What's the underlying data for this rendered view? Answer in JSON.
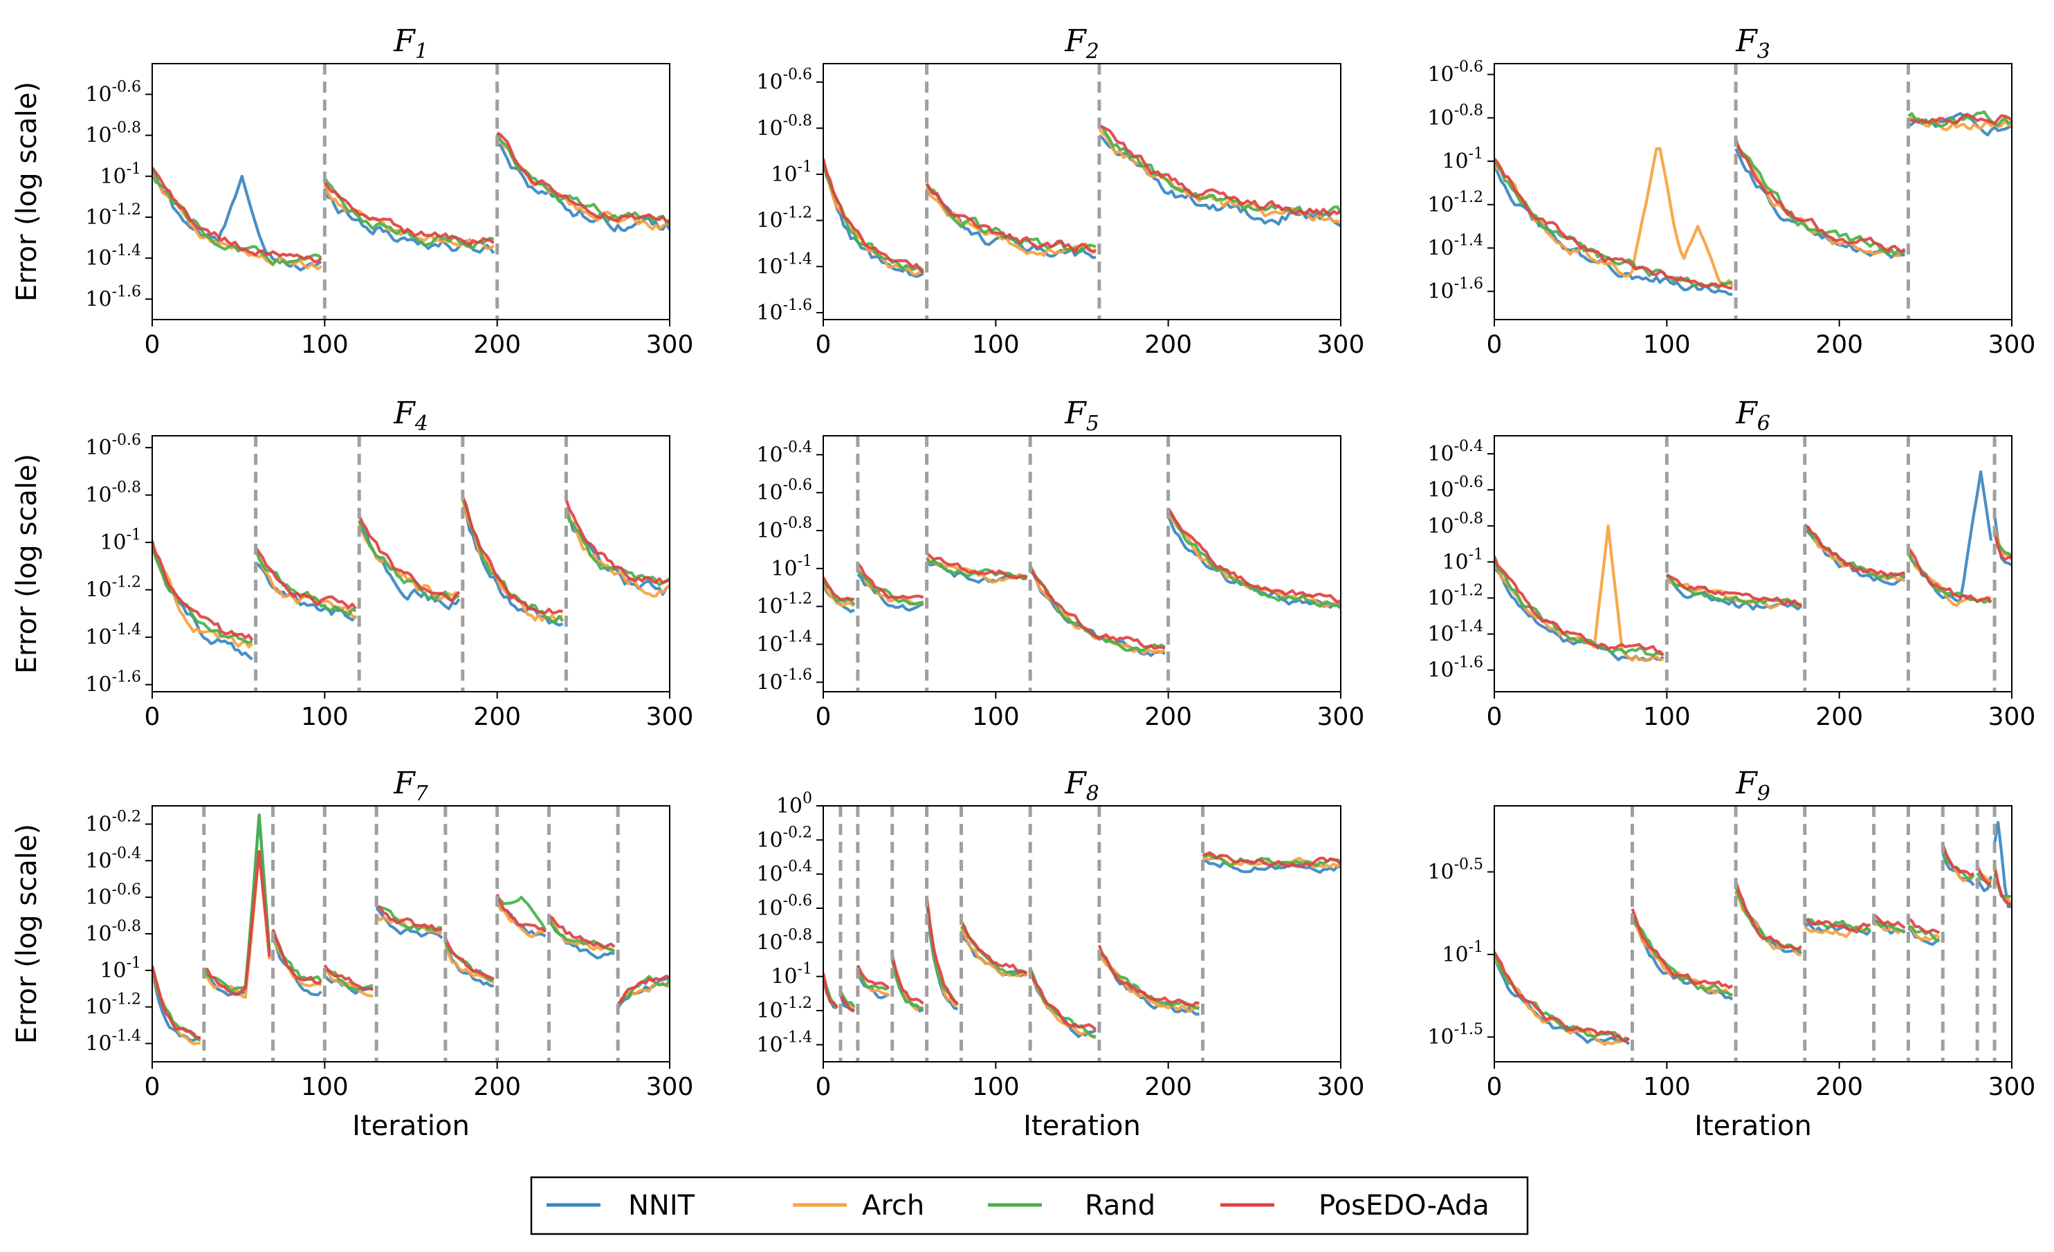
{
  "figure": {
    "ylabel": "Error (log scale)",
    "xlabel": "Iteration",
    "xticks": [
      "0",
      "100",
      "200",
      "300"
    ]
  },
  "legend": {
    "placement": "bottom-center",
    "entries": [
      {
        "label": "NNIT",
        "color": "#3a86c0"
      },
      {
        "label": "Arch",
        "color": "#f7a13d"
      },
      {
        "label": "Rand",
        "color": "#4ab04a"
      },
      {
        "label": "PosEDO-Ada",
        "color": "#dd4244"
      }
    ]
  },
  "chart_data": [
    {
      "type": "line",
      "title": "F1",
      "title_base": "F",
      "title_sub": "1",
      "xlim": [
        0,
        300
      ],
      "ylim": [
        -1.7,
        -0.45
      ],
      "yticks": [
        -0.6,
        -0.8,
        -1.0,
        -1.2,
        -1.4,
        -1.6
      ],
      "yticklabels": [
        "10^-0.6",
        "10^-0.8",
        "10^-1",
        "10^-1.2",
        "10^-1.4",
        "10^-1.6"
      ],
      "changes": [
        100,
        200
      ],
      "segments": [
        [
          0,
          -0.98,
          -1.45
        ],
        [
          100,
          -1.05,
          -1.35
        ],
        [
          200,
          -0.8,
          -1.25
        ]
      ],
      "series": [
        {
          "name": "NNIT",
          "jitter": 0.05,
          "spikes": [
            [
              52,
              -1.0,
              14
            ]
          ]
        },
        {
          "name": "Arch",
          "jitter": 0.04
        },
        {
          "name": "Rand",
          "jitter": 0.04
        },
        {
          "name": "PosEDO-Ada",
          "jitter": 0.035
        }
      ]
    },
    {
      "type": "line",
      "title": "F2",
      "title_base": "F",
      "title_sub": "2",
      "xlim": [
        0,
        300
      ],
      "ylim": [
        -1.63,
        -0.52
      ],
      "yticks": [
        -0.6,
        -0.8,
        -1.0,
        -1.2,
        -1.4,
        -1.6
      ],
      "yticklabels": [
        "10^-0.6",
        "10^-0.8",
        "10^-1",
        "10^-1.2",
        "10^-1.4",
        "10^-1.6"
      ],
      "changes": [
        60,
        160
      ],
      "segments": [
        [
          0,
          -0.95,
          -1.45
        ],
        [
          60,
          -1.05,
          -1.35
        ],
        [
          160,
          -0.8,
          -1.2
        ]
      ],
      "series": [
        {
          "name": "NNIT",
          "jitter": 0.045
        },
        {
          "name": "Arch",
          "jitter": 0.04
        },
        {
          "name": "Rand",
          "jitter": 0.04
        },
        {
          "name": "PosEDO-Ada",
          "jitter": 0.035
        }
      ]
    },
    {
      "type": "line",
      "title": "F3",
      "title_base": "F",
      "title_sub": "3",
      "xlim": [
        0,
        300
      ],
      "ylim": [
        -1.73,
        -0.55
      ],
      "yticks": [
        -0.6,
        -0.8,
        -1.0,
        -1.2,
        -1.4,
        -1.6
      ],
      "yticklabels": [
        "10^-0.6",
        "10^-0.8",
        "10^-1",
        "10^-1.2",
        "10^-1.4",
        "10^-1.6"
      ],
      "changes": [
        140,
        240
      ],
      "segments": [
        [
          0,
          -1.0,
          -1.6
        ],
        [
          140,
          -0.9,
          -1.45
        ],
        [
          240,
          -0.82,
          -0.82
        ]
      ],
      "series": [
        {
          "name": "NNIT",
          "jitter": 0.04,
          "spikes": [
            [
              270,
              -0.78,
              15
            ]
          ]
        },
        {
          "name": "Arch",
          "jitter": 0.04,
          "spikes": [
            [
              95,
              -0.9,
              15
            ],
            [
              118,
              -1.3,
              14
            ]
          ]
        },
        {
          "name": "Rand",
          "jitter": 0.04
        },
        {
          "name": "PosEDO-Ada",
          "jitter": 0.035
        }
      ]
    },
    {
      "type": "line",
      "title": "F4",
      "title_base": "F",
      "title_sub": "4",
      "xlim": [
        0,
        300
      ],
      "ylim": [
        -1.63,
        -0.55
      ],
      "yticks": [
        -0.6,
        -0.8,
        -1.0,
        -1.2,
        -1.4,
        -1.6
      ],
      "yticklabels": [
        "10^-0.6",
        "10^-0.8",
        "10^-1",
        "10^-1.2",
        "10^-1.4",
        "10^-1.6"
      ],
      "changes": [
        60,
        120,
        180,
        240
      ],
      "segments": [
        [
          0,
          -1.0,
          -1.45
        ],
        [
          60,
          -1.05,
          -1.3
        ],
        [
          120,
          -0.9,
          -1.25
        ],
        [
          180,
          -0.82,
          -1.35
        ],
        [
          240,
          -0.85,
          -1.2
        ]
      ],
      "series": [
        {
          "name": "NNIT",
          "jitter": 0.045
        },
        {
          "name": "Arch",
          "jitter": 0.04
        },
        {
          "name": "Rand",
          "jitter": 0.04
        },
        {
          "name": "PosEDO-Ada",
          "jitter": 0.035
        }
      ]
    },
    {
      "type": "line",
      "title": "F5",
      "title_base": "F",
      "title_sub": "5",
      "xlim": [
        0,
        300
      ],
      "ylim": [
        -1.65,
        -0.3
      ],
      "yticks": [
        -0.4,
        -0.6,
        -0.8,
        -1.0,
        -1.2,
        -1.4,
        -1.6
      ],
      "yticklabels": [
        "10^-0.4",
        "10^-0.6",
        "10^-0.8",
        "10^-1",
        "10^-1.2",
        "10^-1.4",
        "10^-1.6"
      ],
      "changes": [
        20,
        60,
        120,
        200
      ],
      "segments": [
        [
          0,
          -1.05,
          -1.2
        ],
        [
          20,
          -1.0,
          -1.2
        ],
        [
          60,
          -0.95,
          -1.05
        ],
        [
          120,
          -1.0,
          -1.45
        ],
        [
          200,
          -0.7,
          -1.2
        ]
      ],
      "series": [
        {
          "name": "NNIT",
          "jitter": 0.035
        },
        {
          "name": "Arch",
          "jitter": 0.035
        },
        {
          "name": "Rand",
          "jitter": 0.035
        },
        {
          "name": "PosEDO-Ada",
          "jitter": 0.03
        }
      ]
    },
    {
      "type": "line",
      "title": "F6",
      "title_base": "F",
      "title_sub": "6",
      "xlim": [
        0,
        300
      ],
      "ylim": [
        -1.72,
        -0.3
      ],
      "yticks": [
        -0.4,
        -0.6,
        -0.8,
        -1.0,
        -1.2,
        -1.4,
        -1.6
      ],
      "yticklabels": [
        "10^-0.4",
        "10^-0.6",
        "10^-0.8",
        "10^-1",
        "10^-1.2",
        "10^-1.4",
        "10^-1.6"
      ],
      "changes": [
        100,
        180,
        240,
        290
      ],
      "segments": [
        [
          0,
          -1.0,
          -1.55
        ],
        [
          100,
          -1.08,
          -1.25
        ],
        [
          180,
          -0.8,
          -1.1
        ],
        [
          240,
          -0.95,
          -1.25
        ],
        [
          290,
          -0.85,
          -1.0
        ]
      ],
      "series": [
        {
          "name": "NNIT",
          "jitter": 0.04,
          "spikes": [
            [
              282,
              -0.5,
              12
            ]
          ]
        },
        {
          "name": "Arch",
          "jitter": 0.04,
          "spikes": [
            [
              66,
              -0.8,
              8
            ]
          ]
        },
        {
          "name": "Rand",
          "jitter": 0.04
        },
        {
          "name": "PosEDO-Ada",
          "jitter": 0.035
        }
      ]
    },
    {
      "type": "line",
      "title": "F7",
      "title_base": "F",
      "title_sub": "7",
      "xlim": [
        0,
        300
      ],
      "ylim": [
        -1.5,
        -0.1
      ],
      "yticks": [
        -0.2,
        -0.4,
        -0.6,
        -0.8,
        -1.0,
        -1.2,
        -1.4
      ],
      "yticklabels": [
        "10^-0.2",
        "10^-0.4",
        "10^-0.6",
        "10^-0.8",
        "10^-1",
        "10^-1.2",
        "10^-1.4"
      ],
      "changes": [
        30,
        70,
        100,
        130,
        170,
        200,
        230,
        270
      ],
      "segments": [
        [
          0,
          -1.0,
          -1.4
        ],
        [
          30,
          -1.0,
          -1.15
        ],
        [
          70,
          -0.8,
          -1.1
        ],
        [
          100,
          -1.0,
          -1.1
        ],
        [
          130,
          -0.65,
          -0.8
        ],
        [
          170,
          -0.85,
          -1.05
        ],
        [
          200,
          -0.6,
          -0.8
        ],
        [
          230,
          -0.7,
          -0.9
        ],
        [
          270,
          -1.2,
          -1.05
        ]
      ],
      "series": [
        {
          "name": "NNIT",
          "jitter": 0.04,
          "spikes": [
            [
              62,
              -0.15,
              8
            ]
          ]
        },
        {
          "name": "Arch",
          "jitter": 0.04,
          "spikes": [
            [
              62,
              -0.35,
              8
            ]
          ]
        },
        {
          "name": "Rand",
          "jitter": 0.04,
          "spikes": [
            [
              62,
              -0.15,
              8
            ],
            [
              214,
              -0.6,
              16
            ]
          ]
        },
        {
          "name": "PosEDO-Ada",
          "jitter": 0.035,
          "spikes": [
            [
              62,
              -0.35,
              8
            ]
          ]
        }
      ]
    },
    {
      "type": "line",
      "title": "F8",
      "title_base": "F",
      "title_sub": "8",
      "xlim": [
        0,
        300
      ],
      "ylim": [
        -1.5,
        0.0
      ],
      "yticks": [
        0.0,
        -0.2,
        -0.4,
        -0.6,
        -0.8,
        -1.0,
        -1.2,
        -1.4
      ],
      "yticklabels": [
        "10^0",
        "10^-0.2",
        "10^-0.4",
        "10^-0.6",
        "10^-0.8",
        "10^-1",
        "10^-1.2",
        "10^-1.4"
      ],
      "changes": [
        10,
        20,
        40,
        60,
        80,
        120,
        160,
        220
      ],
      "segments": [
        [
          0,
          -1.0,
          -1.2
        ],
        [
          10,
          -1.1,
          -1.2
        ],
        [
          20,
          -0.95,
          -1.1
        ],
        [
          40,
          -0.9,
          -1.2
        ],
        [
          60,
          -0.55,
          -1.2
        ],
        [
          80,
          -0.7,
          -1.0
        ],
        [
          120,
          -0.95,
          -1.35
        ],
        [
          160,
          -0.85,
          -1.2
        ],
        [
          220,
          -0.3,
          -0.35
        ]
      ],
      "series": [
        {
          "name": "NNIT",
          "jitter": 0.04
        },
        {
          "name": "Arch",
          "jitter": 0.04
        },
        {
          "name": "Rand",
          "jitter": 0.04
        },
        {
          "name": "PosEDO-Ada",
          "jitter": 0.035
        }
      ]
    },
    {
      "type": "line",
      "title": "F9",
      "title_base": "F",
      "title_sub": "9",
      "xlim": [
        0,
        300
      ],
      "ylim": [
        -1.65,
        -0.1
      ],
      "yticks": [
        -0.5,
        -1.0,
        -1.5
      ],
      "yticklabels": [
        "10^-0.5",
        "10^-1",
        "10^-1.5"
      ],
      "changes": [
        80,
        140,
        180,
        220,
        240,
        260,
        280,
        290
      ],
      "segments": [
        [
          0,
          -1.0,
          -1.55
        ],
        [
          80,
          -0.75,
          -1.25
        ],
        [
          140,
          -0.6,
          -1.0
        ],
        [
          180,
          -0.8,
          -0.85
        ],
        [
          220,
          -0.8,
          -0.85
        ],
        [
          240,
          -0.8,
          -0.9
        ],
        [
          260,
          -0.35,
          -0.55
        ],
        [
          280,
          -0.5,
          -0.6
        ],
        [
          290,
          -0.5,
          -0.7
        ]
      ],
      "series": [
        {
          "name": "NNIT",
          "jitter": 0.045,
          "spikes": [
            [
              292,
              -0.2,
              5
            ]
          ]
        },
        {
          "name": "Arch",
          "jitter": 0.045
        },
        {
          "name": "Rand",
          "jitter": 0.045
        },
        {
          "name": "PosEDO-Ada",
          "jitter": 0.04
        }
      ]
    }
  ]
}
